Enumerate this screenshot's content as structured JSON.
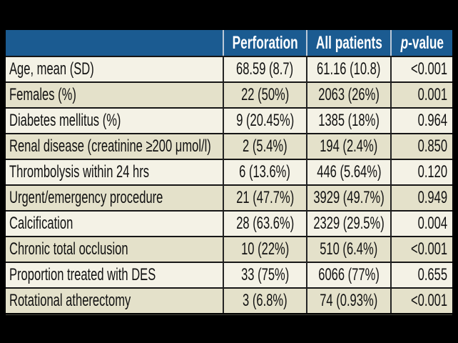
{
  "page": {
    "background": "#000000"
  },
  "table": {
    "colors": {
      "header_bg": "#1b5b91",
      "header_text": "#ffffff",
      "header_divider": "#bcc9d8",
      "row_light": "#f4f2e6",
      "row_dark": "#e4e1ca",
      "body_text": "#121212",
      "grid_line": "#161616"
    },
    "header": {
      "label": "",
      "perforation": "Perforation",
      "all_patients": "All patients",
      "p_italic": "p",
      "p_rest": "-value"
    },
    "rows": [
      {
        "label": "Age, mean (SD)",
        "perforation": "68.59 (8.7)",
        "all_patients": "61.16 (10.8)",
        "p_value": "<0.001"
      },
      {
        "label": "Females (%)",
        "perforation": "22 (50%)",
        "all_patients": "2063 (26%)",
        "p_value": "0.001"
      },
      {
        "label": "Diabetes mellitus (%)",
        "perforation": "9 (20.45%)",
        "all_patients": "1385 (18%)",
        "p_value": "0.964"
      },
      {
        "label": "Renal disease (creatinine ≥200 μmol/l)",
        "perforation": "2 (5.4%)",
        "all_patients": "194 (2.4%)",
        "p_value": "0.850"
      },
      {
        "label": "Thrombolysis within 24 hrs",
        "perforation": "6 (13.6%)",
        "all_patients": "446 (5.64%)",
        "p_value": "0.120"
      },
      {
        "label": "Urgent/emergency procedure",
        "perforation": "21 (47.7%)",
        "all_patients": "3929 (49.7%)",
        "p_value": "0.949"
      },
      {
        "label": "Calcification",
        "perforation": "28 (63.6%)",
        "all_patients": "2329 (29.5%)",
        "p_value": "0.004"
      },
      {
        "label": "Chronic total occlusion",
        "perforation": "10 (22%)",
        "all_patients": "510 (6.4%)",
        "p_value": "<0.001"
      },
      {
        "label": "Proportion treated with DES",
        "perforation": "33 (75%)",
        "all_patients": "6066 (77%)",
        "p_value": "0.655"
      },
      {
        "label": "Rotational atherectomy",
        "perforation": "3 (6.8%)",
        "all_patients": "74 (0.93%)",
        "p_value": "<0.001"
      }
    ]
  }
}
